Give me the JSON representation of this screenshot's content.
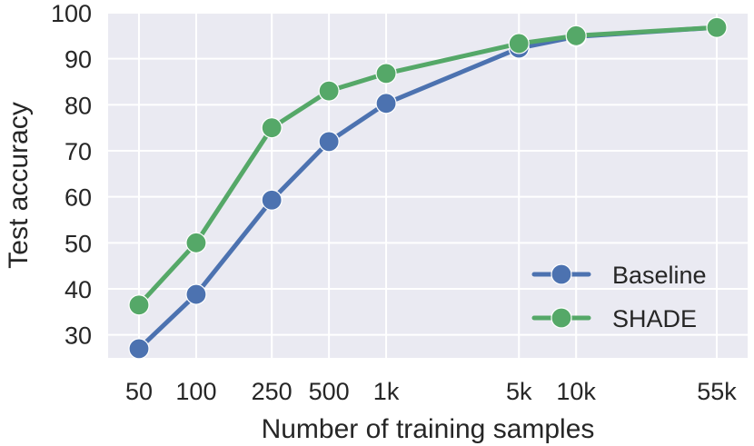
{
  "chart_data": {
    "type": "line",
    "title": "",
    "xlabel": "Number of training samples",
    "ylabel": "Test accuracy",
    "x_scale": "log",
    "categories": [
      "50",
      "100",
      "250",
      "500",
      "1k",
      "5k",
      "10k",
      "55k"
    ],
    "x": [
      50,
      100,
      250,
      500,
      1000,
      5000,
      10000,
      55000
    ],
    "yticks": [
      30,
      40,
      50,
      60,
      70,
      80,
      90,
      100
    ],
    "ylim": [
      25,
      100
    ],
    "grid": true,
    "legend_position": "lower-right",
    "series": [
      {
        "name": "Baseline",
        "color": "#4C72B0",
        "values": [
          27.0,
          38.8,
          59.3,
          72.0,
          80.3,
          92.3,
          94.8,
          96.8
        ]
      },
      {
        "name": "SHADE",
        "color": "#55A868",
        "values": [
          36.5,
          50.0,
          75.0,
          83.0,
          86.8,
          93.3,
          95.0,
          96.8
        ]
      }
    ]
  }
}
